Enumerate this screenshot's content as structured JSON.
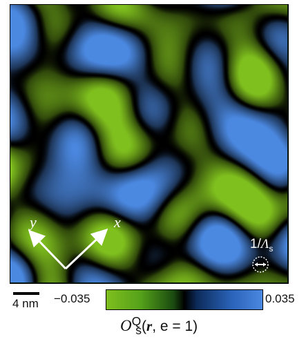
{
  "scale_bar": {
    "label": "4 nm"
  },
  "axes": {
    "x_label": "x",
    "y_label": "y"
  },
  "lambda": {
    "prefix": "1/",
    "symbol": "Λ",
    "subscript": "s"
  },
  "colorbar": {
    "min_label": "−0.035",
    "max_label": "0.035",
    "colors": [
      "#7fbf1e",
      "#000000",
      "#4b88e0"
    ]
  },
  "quantity": {
    "symbol": "O",
    "sup": "Q",
    "sub": "s",
    "arg_open": "(",
    "arg_bold": "r",
    "arg_rest": ", e = 1)"
  }
}
